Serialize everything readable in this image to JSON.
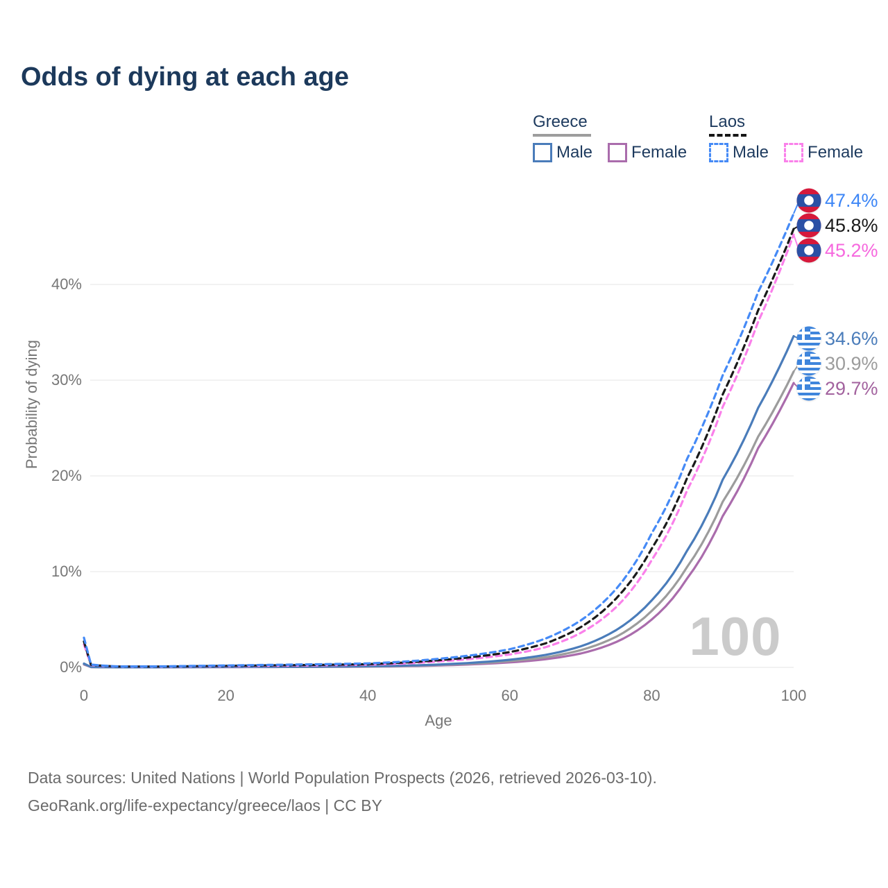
{
  "page": {
    "title": "Odds of dying at each age",
    "watermark_age": "100"
  },
  "legend": {
    "groups": [
      {
        "country": "Greece",
        "line_style": "solid",
        "underline_color": "#9d9d9d",
        "items": [
          {
            "label": "Male",
            "color": "#4a7cba"
          },
          {
            "label": "Female",
            "color": "#aa6cac"
          }
        ]
      },
      {
        "country": "Laos",
        "line_style": "dashed",
        "underline_color": "#161616",
        "items": [
          {
            "label": "Male",
            "color": "#458af6"
          },
          {
            "label": "Female",
            "color": "#fa80ea"
          }
        ]
      }
    ]
  },
  "chart_data": {
    "type": "line",
    "title": "Odds of dying at each age",
    "xlabel": "Age",
    "ylabel": "Probability of dying",
    "xlim": [
      0,
      100
    ],
    "ylim_pct": [
      0,
      48.5
    ],
    "grid": "horizontal",
    "legend_position": "top-right",
    "x_ticks": [
      {
        "value": 0,
        "label": "0"
      },
      {
        "value": 20,
        "label": "20"
      },
      {
        "value": 40,
        "label": "40"
      },
      {
        "value": 60,
        "label": "60"
      },
      {
        "value": 80,
        "label": "80"
      },
      {
        "value": 100,
        "label": "100"
      }
    ],
    "y_ticks": [
      {
        "value": 0,
        "label": "0%"
      },
      {
        "value": 10,
        "label": "10%"
      },
      {
        "value": 20,
        "label": "20%"
      },
      {
        "value": 30,
        "label": "30%"
      },
      {
        "value": 40,
        "label": "40%"
      }
    ],
    "ages": [
      0,
      1,
      5,
      10,
      15,
      20,
      25,
      30,
      35,
      40,
      45,
      50,
      55,
      60,
      65,
      70,
      75,
      80,
      85,
      90,
      95,
      100
    ],
    "series": [
      {
        "id": "greece-female",
        "name": "Greece Female",
        "country": "Greece",
        "sex": "Female",
        "line_style": "solid",
        "color": "#aa6cac",
        "label_color": "#a2629e",
        "flag": "greece",
        "end_label": "29.7%",
        "values_pct": [
          0.3,
          0.03,
          0.01,
          0.01,
          0.02,
          0.03,
          0.035,
          0.045,
          0.06,
          0.08,
          0.12,
          0.2,
          0.33,
          0.52,
          0.85,
          1.45,
          2.65,
          5.0,
          9.3,
          15.8,
          22.9,
          29.7
        ]
      },
      {
        "id": "greece-combined",
        "name": "Greece Both sexes",
        "country": "Greece",
        "sex": "Both",
        "line_style": "solid",
        "color": "#9c9c9c",
        "label_color": "#9c9c9c",
        "flag": "greece",
        "end_label": "30.9%",
        "values_pct": [
          0.35,
          0.035,
          0.01,
          0.01,
          0.025,
          0.04,
          0.05,
          0.06,
          0.08,
          0.1,
          0.15,
          0.25,
          0.41,
          0.66,
          1.05,
          1.8,
          3.2,
          5.9,
          10.5,
          17.3,
          24.1,
          30.9
        ]
      },
      {
        "id": "greece-male",
        "name": "Greece Male",
        "country": "Greece",
        "sex": "Male",
        "line_style": "solid",
        "color": "#4a7cba",
        "label_color": "#4a7cba",
        "flag": "greece",
        "end_label": "34.6%",
        "values_pct": [
          0.4,
          0.04,
          0.01,
          0.01,
          0.03,
          0.05,
          0.06,
          0.07,
          0.09,
          0.12,
          0.18,
          0.3,
          0.5,
          0.8,
          1.3,
          2.2,
          3.9,
          7.0,
          12.2,
          19.6,
          27.1,
          34.6
        ]
      },
      {
        "id": "laos-female",
        "name": "Laos Female",
        "country": "Laos",
        "sex": "Female",
        "line_style": "dashed",
        "color": "#fa80ea",
        "label_color": "#f668de",
        "flag": "laos",
        "end_label": "45.2%",
        "values_pct": [
          2.4,
          0.24,
          0.08,
          0.07,
          0.1,
          0.13,
          0.16,
          0.19,
          0.23,
          0.28,
          0.4,
          0.62,
          0.92,
          1.35,
          2.1,
          3.6,
          6.3,
          11.2,
          18.5,
          27.2,
          36.1,
          45.2
        ]
      },
      {
        "id": "laos-combined",
        "name": "Laos Both sexes",
        "country": "Laos",
        "sex": "Both",
        "line_style": "dashed",
        "color": "#1a1a1a",
        "label_color": "#1a1a1a",
        "flag": "laos",
        "end_label": "45.8%",
        "values_pct": [
          2.7,
          0.27,
          0.09,
          0.08,
          0.12,
          0.16,
          0.2,
          0.24,
          0.28,
          0.34,
          0.5,
          0.75,
          1.1,
          1.6,
          2.5,
          4.2,
          7.2,
          12.4,
          19.8,
          28.5,
          37.3,
          45.8
        ]
      },
      {
        "id": "laos-male",
        "name": "Laos Male",
        "country": "Laos",
        "sex": "Male",
        "line_style": "dashed",
        "color": "#458af6",
        "label_color": "#3d86f6",
        "flag": "laos",
        "end_label": "47.4%",
        "values_pct": [
          3.1,
          0.3,
          0.1,
          0.1,
          0.15,
          0.2,
          0.25,
          0.3,
          0.35,
          0.42,
          0.6,
          0.9,
          1.3,
          1.9,
          3.0,
          4.9,
          8.2,
          14.0,
          21.8,
          30.5,
          39.2,
          47.4
        ]
      }
    ]
  },
  "footer": {
    "line1": "Data sources: United Nations | World Population Prospects (2026, retrieved 2026-03-10).",
    "line2": "GeoRank.org/life-expectancy/greece/laos | CC BY"
  }
}
